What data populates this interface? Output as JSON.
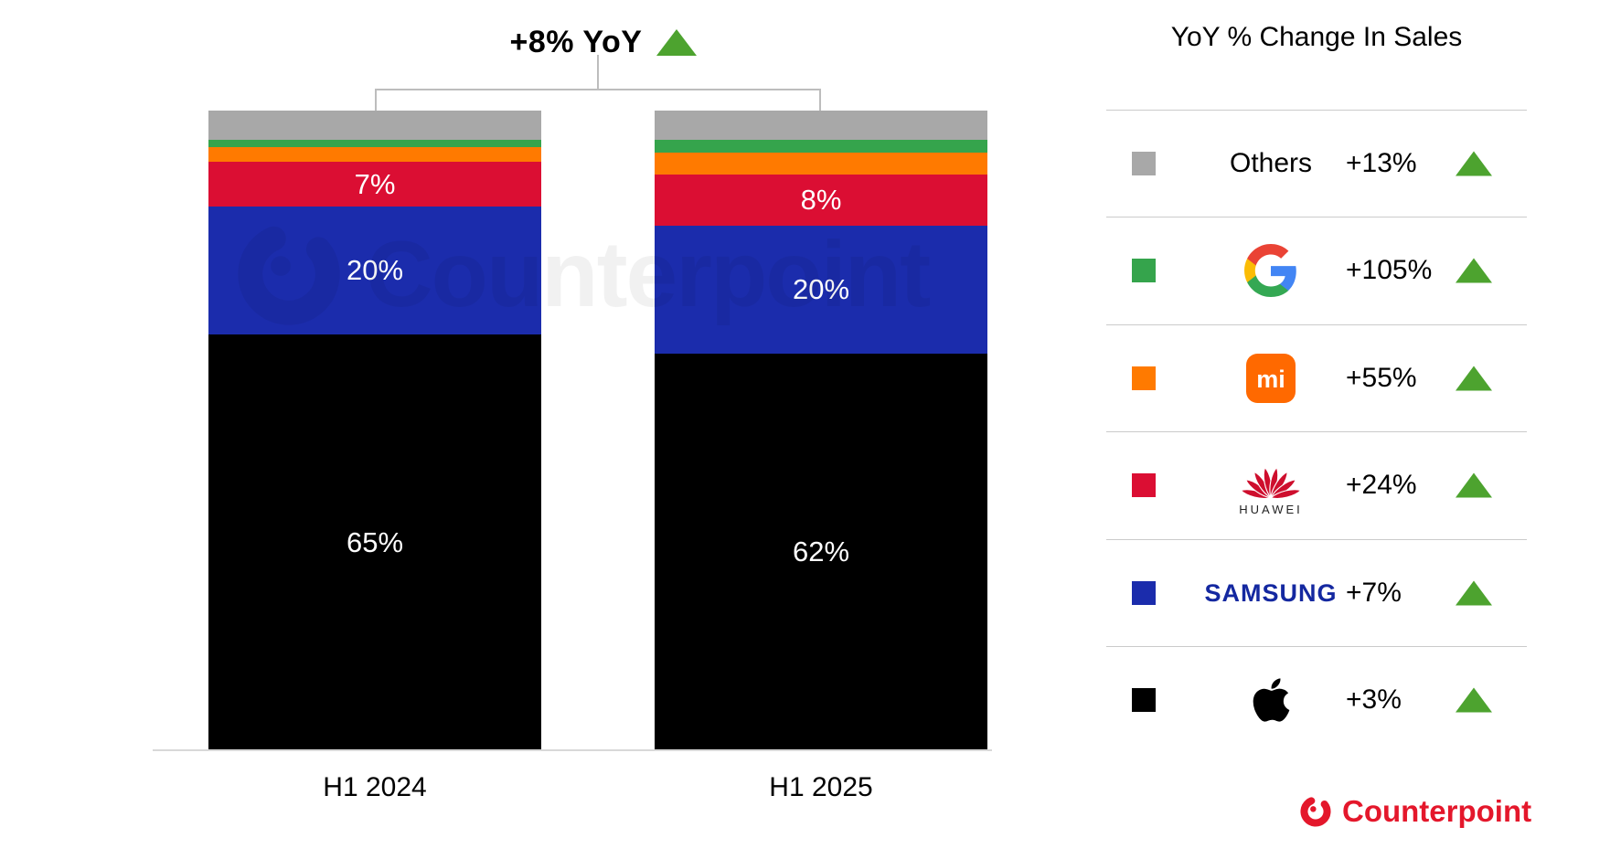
{
  "header": {
    "total_change_label": "+8% YoY"
  },
  "chart_data": {
    "type": "bar",
    "subtype": "stacked-100-percent-column",
    "title": "+8% YoY",
    "categories": [
      "H1 2024",
      "H1 2025"
    ],
    "ylim": [
      0,
      100
    ],
    "unit": "% share of sales",
    "grid": false,
    "legend_position": "right",
    "legend_title": "YoY % Change In Sales",
    "series": [
      {
        "name": "Apple",
        "color": "#000000",
        "values": [
          65,
          62
        ],
        "shown_labels": [
          "65%",
          "62%"
        ]
      },
      {
        "name": "Samsung",
        "color": "#1B2CAC",
        "values": [
          20,
          20
        ],
        "shown_labels": [
          "20%",
          "20%"
        ]
      },
      {
        "name": "Huawei",
        "color": "#DB0E33",
        "values": [
          7,
          8
        ],
        "shown_labels": [
          "7%",
          "8%"
        ]
      },
      {
        "name": "Xiaomi",
        "color": "#FF7A00",
        "values": [
          2.3,
          3.4
        ],
        "shown_labels": [
          null,
          null
        ]
      },
      {
        "name": "Google",
        "color": "#35A44C",
        "values": [
          1.2,
          2.1
        ],
        "shown_labels": [
          null,
          null
        ]
      },
      {
        "name": "Others",
        "color": "#A8A8A8",
        "values": [
          4.5,
          4.5
        ],
        "shown_labels": [
          null,
          null
        ]
      }
    ],
    "annotations": {
      "total_yoy_change": "+8%"
    }
  },
  "legend": {
    "title": "YoY % Change In Sales",
    "trend_icon_color": "#4DA32F",
    "rows": [
      {
        "brand": "Others",
        "swatch": "#A8A8A8",
        "label": "Others",
        "change": "+13%"
      },
      {
        "brand": "Google",
        "swatch": "#35A44C",
        "change": "+105%"
      },
      {
        "brand": "Xiaomi",
        "swatch": "#FF7A00",
        "logo_text": "mi",
        "change": "+55%"
      },
      {
        "brand": "Huawei",
        "swatch": "#DB0E33",
        "logo_caption": "HUAWEI",
        "change": "+24%"
      },
      {
        "brand": "Samsung",
        "swatch": "#1B2CAC",
        "label": "SAMSUNG",
        "change": "+7%"
      },
      {
        "brand": "Apple",
        "swatch": "#000000",
        "change": "+3%"
      }
    ]
  },
  "watermark": {
    "text": "Counterpoint"
  },
  "footer": {
    "brand": "Counterpoint",
    "color": "#E4172B"
  }
}
